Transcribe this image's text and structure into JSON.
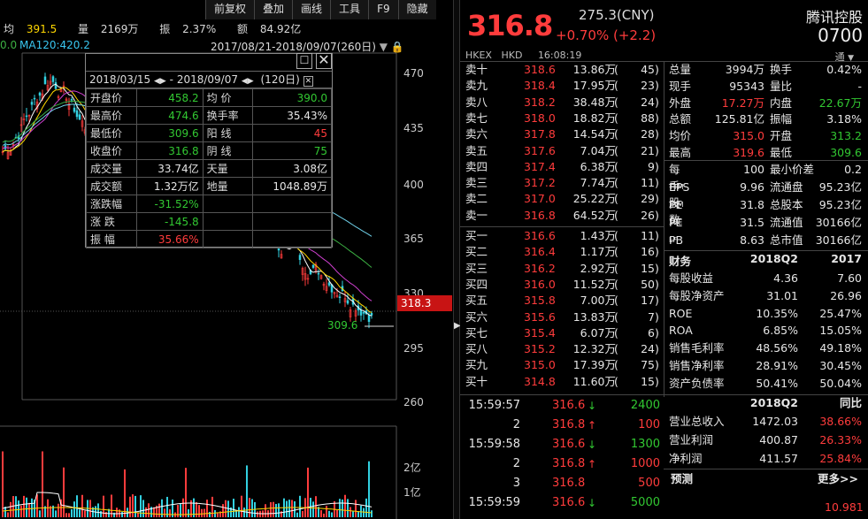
{
  "toolbar": [
    "前复权",
    "叠加",
    "画线",
    "工具",
    "F9",
    "隐藏"
  ],
  "summary": {
    "avg_label": "均",
    "avg_value": "391.5",
    "vol_label": "量",
    "vol_value": "2169万",
    "amp_label": "振",
    "amp_value": "2.37%",
    "amt_label": "额",
    "amt_value": "84.92亿"
  },
  "ma_left": "0.0",
  "ma120": "MA120:420.2",
  "range_text": "2017/08/21-2018/09/07(260日)",
  "y_axis": [
    "470",
    "435",
    "400",
    "365",
    "330",
    "295",
    "260"
  ],
  "vol_axis": [
    "2亿",
    "1亿"
  ],
  "price_tag": "318.3",
  "low_mark": "309.6",
  "popup": {
    "date_from": "2018/03/15",
    "date_to": "2018/09/07",
    "days": "(120日)",
    "rows": [
      {
        "l1": "开盘价",
        "v1": "458.2",
        "c1": "down",
        "l2": "均  价",
        "v2": "390.0",
        "c2": "down"
      },
      {
        "l1": "最高价",
        "v1": "474.6",
        "c1": "down",
        "l2": "换手率",
        "v2": "35.43%",
        "c2": "wt"
      },
      {
        "l1": "最低价",
        "v1": "309.6",
        "c1": "down",
        "l2": "阳  线",
        "v2": "45",
        "c2": "up"
      },
      {
        "l1": "收盘价",
        "v1": "316.8",
        "c1": "down",
        "l2": "阴  线",
        "v2": "75",
        "c2": "down"
      },
      {
        "l1": "成交量",
        "v1": "33.74亿",
        "c1": "wt",
        "l2": "天量",
        "v2": "3.08亿",
        "c2": "wt"
      },
      {
        "l1": "成交额",
        "v1": "1.32万亿",
        "c1": "wt",
        "l2": "地量",
        "v2": "1048.89万",
        "c2": "wt"
      },
      {
        "l1": "涨跌幅",
        "v1": "-31.52%",
        "c1": "down",
        "l2": "",
        "v2": "",
        "c2": "wt"
      },
      {
        "l1": "涨  跌",
        "v1": "-145.8",
        "c1": "down",
        "l2": "",
        "v2": "",
        "c2": "wt"
      },
      {
        "l1": "振  幅",
        "v1": "35.66%",
        "c1": "up",
        "l2": "",
        "v2": "",
        "c2": "wt"
      }
    ]
  },
  "quote": {
    "price": "316.8",
    "cny": "275.3(CNY)",
    "change": "+0.70% (+2.2)",
    "name": "腾讯控股",
    "code": "0700",
    "exchange": "HKEX",
    "currency": "HKD",
    "time": "16:08:19",
    "tong": "通"
  },
  "asks": [
    {
      "label": "卖十",
      "price": "318.6",
      "vol": "13.86万",
      "cnt": "45"
    },
    {
      "label": "卖九",
      "price": "318.4",
      "vol": "17.95万",
      "cnt": "23"
    },
    {
      "label": "卖八",
      "price": "318.2",
      "vol": "38.48万",
      "cnt": "24"
    },
    {
      "label": "卖七",
      "price": "318.0",
      "vol": "18.82万",
      "cnt": "88"
    },
    {
      "label": "卖六",
      "price": "317.8",
      "vol": "14.54万",
      "cnt": "28"
    },
    {
      "label": "卖五",
      "price": "317.6",
      "vol": "7.04万",
      "cnt": "21"
    },
    {
      "label": "卖四",
      "price": "317.4",
      "vol": "6.38万",
      "cnt": "9"
    },
    {
      "label": "卖三",
      "price": "317.2",
      "vol": "7.74万",
      "cnt": "11"
    },
    {
      "label": "卖二",
      "price": "317.0",
      "vol": "25.22万",
      "cnt": "29"
    },
    {
      "label": "卖一",
      "price": "316.8",
      "vol": "64.52万",
      "cnt": "26"
    }
  ],
  "bids": [
    {
      "label": "买一",
      "price": "316.6",
      "vol": "1.43万",
      "cnt": "11"
    },
    {
      "label": "买二",
      "price": "316.4",
      "vol": "1.17万",
      "cnt": "16"
    },
    {
      "label": "买三",
      "price": "316.2",
      "vol": "2.92万",
      "cnt": "15"
    },
    {
      "label": "买四",
      "price": "316.0",
      "vol": "11.52万",
      "cnt": "50"
    },
    {
      "label": "买五",
      "price": "315.8",
      "vol": "7.00万",
      "cnt": "17"
    },
    {
      "label": "买六",
      "price": "315.6",
      "vol": "13.83万",
      "cnt": "7"
    },
    {
      "label": "买七",
      "price": "315.4",
      "vol": "6.07万",
      "cnt": "6"
    },
    {
      "label": "买八",
      "price": "315.2",
      "vol": "12.32万",
      "cnt": "24"
    },
    {
      "label": "买九",
      "price": "315.0",
      "vol": "17.39万",
      "cnt": "75"
    },
    {
      "label": "买十",
      "price": "314.8",
      "vol": "11.60万",
      "cnt": "15"
    }
  ],
  "stats": [
    {
      "l1": "总量",
      "v1": "3994万",
      "c1": "wt",
      "l2": "换手",
      "v2": "0.42%",
      "c2": "wt"
    },
    {
      "l1": "现手",
      "v1": "95343",
      "c1": "wt",
      "l2": "量比",
      "v2": "-",
      "c2": "wt"
    },
    {
      "l1": "外盘",
      "v1": "17.27万",
      "c1": "up",
      "l2": "内盘",
      "v2": "22.67万",
      "c2": "down"
    },
    {
      "l1": "总额",
      "v1": "125.81亿",
      "c1": "wt",
      "l2": "振幅",
      "v2": "3.18%",
      "c2": "wt"
    },
    {
      "l1": "均价",
      "v1": "315.0",
      "c1": "up",
      "l2": "开盘",
      "v2": "313.2",
      "c2": "down"
    },
    {
      "l1": "最高",
      "v1": "319.6",
      "c1": "up",
      "l2": "最低",
      "v2": "309.6",
      "c2": "down"
    }
  ],
  "stats2": [
    {
      "l1": "每手股数",
      "v1": "100",
      "l2": "最小价差",
      "v2": "0.2"
    },
    {
      "l1": "EPS",
      "s1": "TTM",
      "v1": "9.96",
      "l2": "流通盘",
      "v2": "95.23亿"
    },
    {
      "l1": "PE",
      "s1": "TTM",
      "v1": "31.8",
      "l2": "总股本",
      "v2": "95.23亿"
    },
    {
      "l1": "PE",
      "s1": "18E",
      "v1": "31.5",
      "l2": "流通值",
      "v2": "30166亿"
    },
    {
      "l1": "PB",
      "s1": "LF",
      "v1": "8.63",
      "l2": "总市值",
      "v2": "30166亿"
    }
  ],
  "finance": {
    "header": [
      "财务",
      "2018Q2",
      "2017"
    ],
    "rows": [
      {
        "l": "每股收益",
        "a": "4.36",
        "b": "7.60"
      },
      {
        "l": "每股净资产",
        "a": "31.01",
        "b": "26.96"
      },
      {
        "l": "ROE",
        "a": "10.35%",
        "b": "25.47%"
      },
      {
        "l": "ROA",
        "a": "6.85%",
        "b": "15.05%"
      },
      {
        "l": "销售毛利率",
        "a": "48.56%",
        "b": "49.18%"
      },
      {
        "l": "销售净利率",
        "a": "28.91%",
        "b": "30.45%"
      },
      {
        "l": "资产负债率",
        "a": "50.41%",
        "b": "50.04%"
      }
    ]
  },
  "ticks": [
    {
      "t": "15:59:57",
      "p": "316.6",
      "a": "↓",
      "ac": "down",
      "v": "2400",
      "vc": "down"
    },
    {
      "t": "2",
      "p": "316.8",
      "a": "↑",
      "ac": "up",
      "v": "100",
      "vc": "up"
    },
    {
      "t": "15:59:58",
      "p": "316.6",
      "a": "↓",
      "ac": "down",
      "v": "1300",
      "vc": "down"
    },
    {
      "t": "2",
      "p": "316.8",
      "a": "↑",
      "ac": "up",
      "v": "1000",
      "vc": "up"
    },
    {
      "t": "3",
      "p": "316.8",
      "a": "",
      "ac": "wt",
      "v": "500",
      "vc": "up"
    },
    {
      "t": "15:59:59",
      "p": "316.6",
      "a": "↓",
      "ac": "down",
      "v": "5000",
      "vc": "down"
    }
  ],
  "profit": {
    "header": [
      "2018Q2",
      "同比"
    ],
    "rows": [
      {
        "l": "营业总收入",
        "a": "1472.03",
        "b": "38.66%"
      },
      {
        "l": "营业利润",
        "a": "400.87",
        "b": "26.33%"
      },
      {
        "l": "净利润",
        "a": "411.57",
        "b": "25.84%"
      }
    ],
    "forecast": "预测",
    "more": "更多>>",
    "bottom_value": "10.981"
  }
}
